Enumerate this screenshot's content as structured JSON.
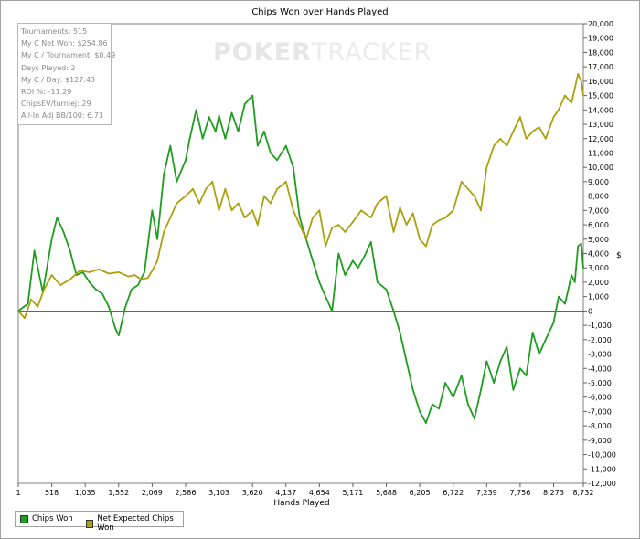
{
  "chart_data": {
    "type": "line",
    "title": "Chips Won over Hands Played",
    "xlabel": "Hands Played",
    "ylabel": "$",
    "xlim": [
      1,
      8732
    ],
    "ylim": [
      -12000,
      20000
    ],
    "x_ticks": [
      "1",
      "518",
      "1,035",
      "1,552",
      "2,069",
      "2,586",
      "3,103",
      "3,620",
      "4,137",
      "4,654",
      "5,171",
      "5,688",
      "6,205",
      "6,722",
      "7,239",
      "7,756",
      "8,273",
      "8,732"
    ],
    "y_ticks": [
      "20,000",
      "19,000",
      "18,000",
      "17,000",
      "16,000",
      "15,000",
      "14,000",
      "13,000",
      "12,000",
      "11,000",
      "10,000",
      "9,000",
      "8,000",
      "7,000",
      "6,000",
      "5,000",
      "4,000",
      "3,000",
      "2,000",
      "1,000",
      "0",
      "-1,000",
      "-2,000",
      "-3,000",
      "-4,000",
      "-5,000",
      "-6,000",
      "-7,000",
      "-8,000",
      "-9,000",
      "-10,000",
      "-11,000",
      "-12,000"
    ],
    "grid": false,
    "legend_position": "bottom-left",
    "series": [
      {
        "name": "Chips Won",
        "color": "#1e9e1e",
        "x": [
          1,
          150,
          250,
          380,
          518,
          600,
          700,
          800,
          900,
          1000,
          1100,
          1200,
          1300,
          1400,
          1500,
          1552,
          1600,
          1650,
          1750,
          1850,
          1950,
          2069,
          2150,
          2250,
          2350,
          2450,
          2586,
          2650,
          2750,
          2850,
          2950,
          3050,
          3103,
          3200,
          3300,
          3400,
          3500,
          3620,
          3700,
          3800,
          3900,
          4000,
          4137,
          4250,
          4350,
          4450,
          4550,
          4654,
          4750,
          4850,
          4950,
          5050,
          5171,
          5250,
          5350,
          5450,
          5550,
          5688,
          5800,
          5900,
          6000,
          6100,
          6205,
          6300,
          6400,
          6500,
          6600,
          6722,
          6850,
          6950,
          7050,
          7150,
          7239,
          7350,
          7450,
          7550,
          7650,
          7756,
          7850,
          7950,
          8050,
          8150,
          8273,
          8350,
          8450,
          8550,
          8600,
          8650,
          8700,
          8732
        ],
        "y": [
          0,
          500,
          4200,
          1300,
          5000,
          6500,
          5500,
          4200,
          2500,
          2700,
          2000,
          1500,
          1200,
          300,
          -1200,
          -1700,
          -800,
          200,
          1500,
          1800,
          2700,
          7000,
          5000,
          9500,
          11500,
          9000,
          10500,
          12000,
          14000,
          12000,
          13500,
          12500,
          13600,
          12000,
          13800,
          12500,
          14400,
          15000,
          11500,
          12500,
          11000,
          10500,
          11500,
          10000,
          6500,
          5000,
          3500,
          2000,
          1000,
          0,
          4000,
          2500,
          3500,
          3000,
          3800,
          4800,
          2000,
          1500,
          0,
          -1500,
          -3500,
          -5500,
          -7000,
          -7800,
          -6500,
          -6800,
          -5000,
          -6000,
          -4500,
          -6500,
          -7500,
          -5500,
          -3500,
          -5000,
          -3500,
          -2500,
          -5500,
          -4000,
          -4500,
          -1500,
          -3000,
          -2000,
          -800,
          1000,
          500,
          2500,
          2000,
          4500,
          4700,
          3000
        ]
      },
      {
        "name": "Net Expected Chips Won",
        "color": "#aba10f",
        "x": [
          1,
          100,
          200,
          300,
          400,
          518,
          650,
          800,
          950,
          1100,
          1250,
          1400,
          1552,
          1700,
          1800,
          1900,
          2000,
          2069,
          2150,
          2250,
          2350,
          2450,
          2586,
          2700,
          2800,
          2900,
          3000,
          3103,
          3200,
          3300,
          3400,
          3500,
          3620,
          3700,
          3800,
          3900,
          4000,
          4137,
          4250,
          4350,
          4450,
          4550,
          4654,
          4750,
          4850,
          4950,
          5050,
          5171,
          5300,
          5450,
          5550,
          5688,
          5800,
          5900,
          6000,
          6100,
          6205,
          6300,
          6400,
          6500,
          6600,
          6722,
          6850,
          6950,
          7050,
          7150,
          7239,
          7350,
          7450,
          7550,
          7650,
          7756,
          7850,
          7950,
          8050,
          8150,
          8273,
          8350,
          8450,
          8550,
          8600,
          8650,
          8700,
          8732
        ],
        "y": [
          0,
          -500,
          800,
          300,
          1500,
          2500,
          1800,
          2200,
          2800,
          2700,
          2900,
          2600,
          2700,
          2400,
          2500,
          2200,
          2300,
          2800,
          3500,
          5500,
          6500,
          7500,
          8000,
          8500,
          7500,
          8500,
          9000,
          7000,
          8500,
          7000,
          7500,
          6500,
          7000,
          6000,
          8000,
          7500,
          8500,
          9000,
          7000,
          6000,
          5000,
          6500,
          7000,
          4500,
          5800,
          6000,
          5500,
          6200,
          7000,
          6500,
          7500,
          8000,
          5500,
          7200,
          6000,
          6800,
          5000,
          4500,
          6000,
          6300,
          6500,
          7000,
          9000,
          8500,
          8000,
          7000,
          10000,
          11500,
          12000,
          11500,
          12500,
          13500,
          12000,
          12500,
          12800,
          12000,
          13500,
          14000,
          15000,
          14500,
          15500,
          16500,
          16000,
          15000
        ]
      }
    ]
  },
  "stats_box": {
    "tournaments": "Tournaments: 515",
    "net_won": "My C Net Won: $254.86",
    "per_tournament": "My C / Tournament: $0.49",
    "days_played": "Days Played: 2",
    "per_day": "My C / Day: $127.43",
    "roi": "ROI %: -11.29",
    "chipsev": "ChipsEV/turniej: 29",
    "allin": "All-In Adj BB/100: 6.73"
  },
  "watermark": {
    "part1": "POKER",
    "part2": "TRACKER"
  }
}
